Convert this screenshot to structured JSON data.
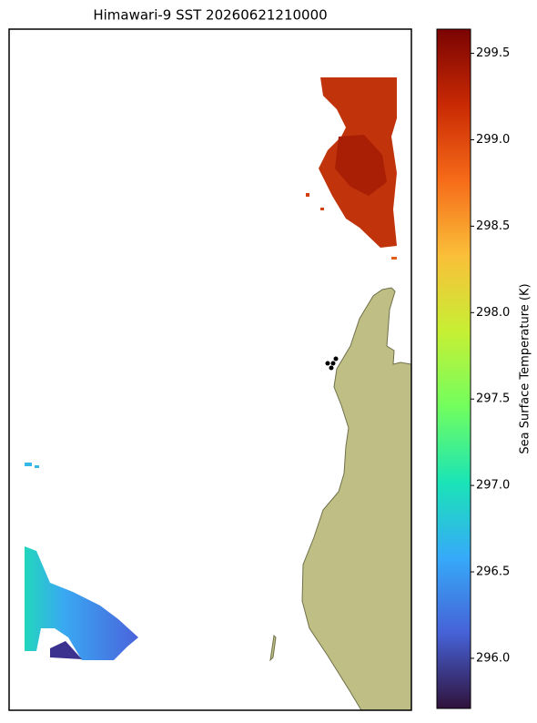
{
  "title": "Himawari-9 SST 20260621210000",
  "colorbar": {
    "label": "Sea Surface Temperature (K)",
    "lim": [
      295.71,
      299.64
    ],
    "ticks": [
      {
        "value": 296,
        "label": "296.0"
      },
      296.5,
      {
        "value": 297,
        "label": "297.0"
      },
      297.5,
      {
        "value": 298,
        "label": "298.0"
      },
      298.5,
      {
        "value": 299,
        "label": "299.0"
      },
      299.5
    ],
    "colors": [
      "#30123b",
      "#4662d7",
      "#36aaf9",
      "#1ae4b6",
      "#72fe5e",
      "#c7ef34",
      "#fabf39",
      "#f66b19",
      "#c92903",
      "#7a0403"
    ]
  }
}
